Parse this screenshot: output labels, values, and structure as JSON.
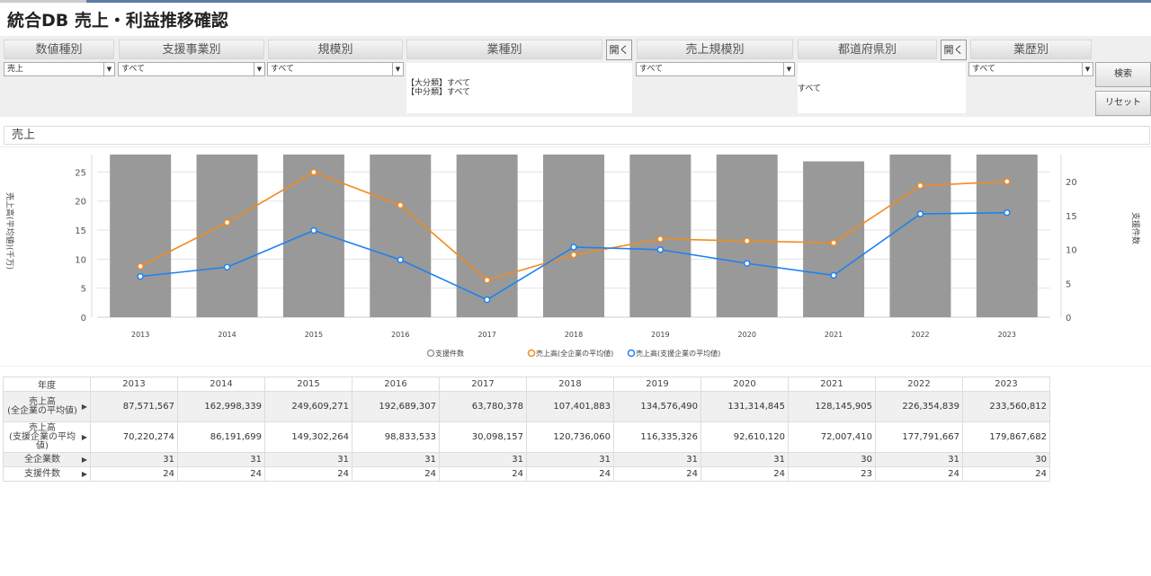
{
  "title": "統合DB 売上・利益推移確認",
  "filters": {
    "value_type": {
      "label": "数値種別",
      "value": "売上"
    },
    "support_business": {
      "label": "支援事業別",
      "value": "すべて"
    },
    "scale": {
      "label": "規模別",
      "value": "すべて"
    },
    "industry": {
      "label": "業種別",
      "open": "開く",
      "line1": "【大分類】すべて",
      "line2": "【中分類】すべて"
    },
    "sales_scale": {
      "label": "売上規模別",
      "value": "すべて"
    },
    "prefecture": {
      "label": "都道府県別",
      "open": "開く",
      "value": "すべて"
    },
    "history": {
      "label": "業歴別",
      "value": "すべて"
    },
    "search": "検索",
    "reset": "リセット"
  },
  "section_title": "売上",
  "chart_data": {
    "type": "bar+line",
    "categories": [
      "2013",
      "2014",
      "2015",
      "2016",
      "2017",
      "2018",
      "2019",
      "2020",
      "2021",
      "2022",
      "2023"
    ],
    "ylabel": "売上高(平均値)(千万)",
    "y2label": "支援件数",
    "ylim": [
      0,
      28
    ],
    "yticks": [
      0,
      5,
      10,
      15,
      20,
      25
    ],
    "y2lim": [
      0,
      24
    ],
    "y2ticks": [
      0,
      5,
      10,
      15,
      20
    ],
    "grid": true,
    "legend": "bottom",
    "series": [
      {
        "name": "支援件数",
        "type": "bar",
        "axis": "right",
        "color": "#999999",
        "values": [
          24,
          24,
          24,
          24,
          24,
          24,
          24,
          24,
          23,
          24,
          24
        ]
      },
      {
        "name": "売上高(全企業の平均値)",
        "type": "line",
        "axis": "left",
        "color": "#f28a1e",
        "values": [
          8.76,
          16.3,
          24.96,
          19.27,
          6.38,
          10.74,
          13.46,
          13.13,
          12.81,
          22.64,
          23.36
        ]
      },
      {
        "name": "売上高(支援企業の平均値)",
        "type": "line",
        "axis": "left",
        "color": "#1e82f0",
        "values": [
          7.02,
          8.62,
          14.93,
          9.88,
          3.01,
          12.07,
          11.63,
          9.26,
          7.2,
          17.78,
          17.99
        ]
      }
    ]
  },
  "table": {
    "header": "年度",
    "years": [
      "2013",
      "2014",
      "2015",
      "2016",
      "2017",
      "2018",
      "2019",
      "2020",
      "2021",
      "2022",
      "2023"
    ],
    "rows": [
      {
        "l1": "売上高",
        "l2": "(全企業の平均値)",
        "values": [
          "87,571,567",
          "162,998,339",
          "249,609,271",
          "192,689,307",
          "63,780,378",
          "107,401,883",
          "134,576,490",
          "131,314,845",
          "128,145,905",
          "226,354,839",
          "233,560,812"
        ]
      },
      {
        "l1": "売上高",
        "l2": "(支援企業の平均値)",
        "values": [
          "70,220,274",
          "86,191,699",
          "149,302,264",
          "98,833,533",
          "30,098,157",
          "120,736,060",
          "116,335,326",
          "92,610,120",
          "72,007,410",
          "177,791,667",
          "179,867,682"
        ]
      },
      {
        "l1": "全企業数",
        "l2": "",
        "values": [
          "31",
          "31",
          "31",
          "31",
          "31",
          "31",
          "31",
          "31",
          "30",
          "31",
          "30"
        ]
      },
      {
        "l1": "支援件数",
        "l2": "",
        "values": [
          "24",
          "24",
          "24",
          "24",
          "24",
          "24",
          "24",
          "24",
          "23",
          "24",
          "24"
        ]
      }
    ]
  }
}
